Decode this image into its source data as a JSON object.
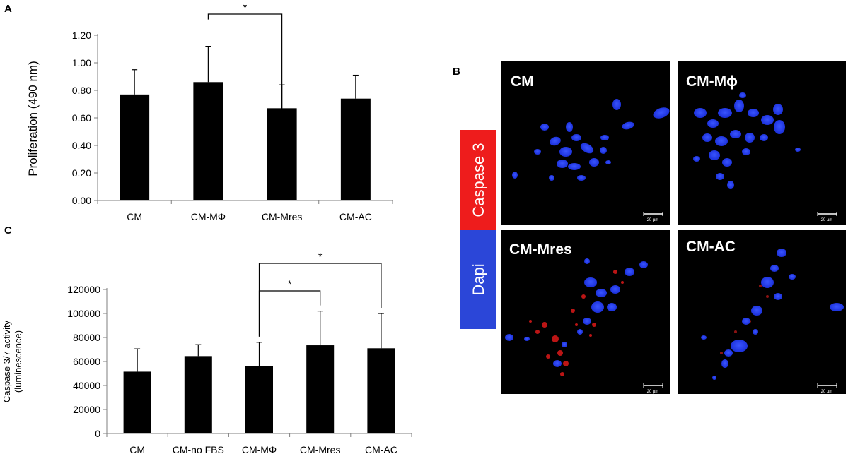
{
  "panels": {
    "a": "A",
    "b": "B",
    "c": "C"
  },
  "chart_data": [
    {
      "type": "bar",
      "panel": "A",
      "categories": [
        "CM",
        "CM-MΦ",
        "CM-Mres",
        "CM-AC"
      ],
      "values": [
        0.77,
        0.86,
        0.67,
        0.74
      ],
      "errors": [
        0.18,
        0.26,
        0.17,
        0.17
      ],
      "ylabel": "Proliferation (490 nm)",
      "xlabel": "",
      "ylim": [
        0,
        1.2
      ],
      "yticks": [
        "0.00",
        "0.20",
        "0.40",
        "0.60",
        "0.80",
        "1.00",
        "1.20"
      ],
      "color": "#000000",
      "significance": [
        {
          "from": "CM-MΦ",
          "to": "CM-Mres",
          "label": "*"
        }
      ]
    },
    {
      "type": "bar",
      "panel": "C",
      "categories": [
        "CM",
        "CM-no FBS",
        "CM-MΦ",
        "CM-Mres",
        "CM-AC"
      ],
      "values": [
        51500,
        64500,
        56000,
        73500,
        71000
      ],
      "errors": [
        19000,
        9500,
        20000,
        28500,
        29000
      ],
      "ylabel": "Caspase 3/7 activity (luminescence)",
      "ylabel_lines": [
        "Caspase 3/7 activity",
        "(luminescence)"
      ],
      "xlabel": "",
      "ylim": [
        0,
        120000
      ],
      "yticks": [
        "0",
        "20000",
        "40000",
        "60000",
        "80000",
        "100000",
        "120000"
      ],
      "color": "#000000",
      "significance": [
        {
          "from": "CM-MΦ",
          "to": "CM-Mres",
          "label": "*"
        },
        {
          "from": "CM-MΦ",
          "to": "CM-AC",
          "label": "*"
        }
      ]
    }
  ],
  "microscopy": {
    "legend": [
      {
        "label": "Caspase 3",
        "color": "#ee1c1c"
      },
      {
        "label": "Dapi",
        "color": "#2b46d8"
      }
    ],
    "images": [
      {
        "label": "CM",
        "scale": "20 µm"
      },
      {
        "label": "CM-Mϕ",
        "scale": "20 µm"
      },
      {
        "label": "CM-Mres",
        "scale": "20 µm"
      },
      {
        "label": "CM-AC",
        "scale": "20 µm"
      }
    ]
  }
}
